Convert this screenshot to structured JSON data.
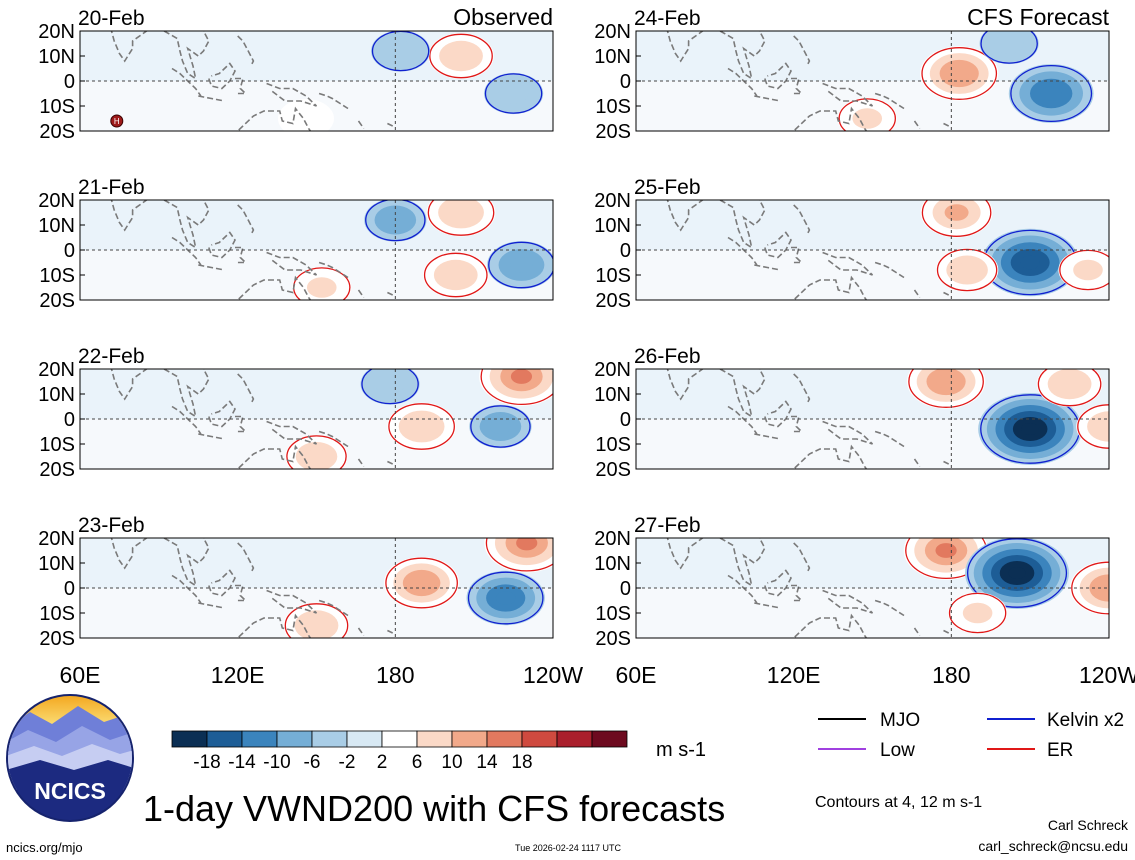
{
  "left_column_title": "Observed",
  "right_column_title": "CFS Forecast",
  "panels_left": [
    "20-Feb",
    "21-Feb",
    "22-Feb",
    "23-Feb"
  ],
  "panels_right": [
    "24-Feb",
    "25-Feb",
    "26-Feb",
    "27-Feb"
  ],
  "lat_labels": [
    "20N",
    "10N",
    "0",
    "10S",
    "20S"
  ],
  "lon_labels_left": [
    "60E",
    "120E",
    "180",
    "120W"
  ],
  "lon_labels_right": [
    "60E",
    "120E",
    "180",
    "120W"
  ],
  "high_marker": "H",
  "colorbar": {
    "ticks": [
      "-18",
      "-14",
      "-10",
      "-6",
      "-2",
      "2",
      "6",
      "10",
      "14",
      "18"
    ],
    "colors": [
      "#0b2f54",
      "#1d5d96",
      "#3b84bd",
      "#75aed6",
      "#a9cde6",
      "#d8e9f4",
      "#ffffff",
      "#fbd9c7",
      "#f2a98a",
      "#e2795f",
      "#cf4a3f",
      "#aa1f2c",
      "#6d0a1f"
    ],
    "units": "m s-1"
  },
  "legend": {
    "items": [
      {
        "label": "MJO",
        "color": "#000000"
      },
      {
        "label": "Kelvin x2",
        "color": "#1020d0"
      },
      {
        "label": "Low",
        "color": "#a040e0"
      },
      {
        "label": "ER",
        "color": "#e01818"
      }
    ],
    "contours_note": "Contours at 4, 12 m s-1"
  },
  "logo_text": "NCICS",
  "title": "1-day VWND200 with CFS forecasts",
  "footer": {
    "left": "ncics.org/mjo",
    "timestamp": "Tue 2026-02-24 1117 UTC",
    "author": "Carl Schreck",
    "email": "carl_schreck@ncsu.edu"
  },
  "chart_data": {
    "type": "heatmap",
    "variable": "200 hPa meridional wind (VWND200)",
    "units": "m s-1",
    "x_range": [
      60,
      240
    ],
    "x_ticks": [
      "60E",
      "120E",
      "180",
      "120W"
    ],
    "y_range": [
      -20,
      20
    ],
    "y_ticks": [
      "20N",
      "10N",
      "0",
      "10S",
      "20S"
    ],
    "color_levels": [
      -18,
      -14,
      -10,
      -6,
      -2,
      2,
      6,
      10,
      14,
      18
    ],
    "contour_levels": [
      4,
      12
    ],
    "observed_dates": [
      "20-Feb",
      "21-Feb",
      "22-Feb",
      "23-Feb"
    ],
    "forecast_dates": [
      "24-Feb",
      "25-Feb",
      "26-Feb",
      "27-Feb"
    ],
    "vertical_line_lon": 180,
    "features": [
      {
        "panel": "20-Feb",
        "lon": 205,
        "lat": 10,
        "value": 8
      },
      {
        "panel": "20-Feb",
        "lon": 225,
        "lat": -5,
        "value": -6
      },
      {
        "panel": "20-Feb",
        "lon": 182,
        "lat": 12,
        "value": -6
      },
      {
        "panel": "20-Feb",
        "lon": 146,
        "lat": -15,
        "value": 5
      },
      {
        "panel": "21-Feb",
        "lon": 205,
        "lat": 15,
        "value": 9
      },
      {
        "panel": "21-Feb",
        "lon": 203,
        "lat": -10,
        "value": 8
      },
      {
        "panel": "21-Feb",
        "lon": 180,
        "lat": 12,
        "value": -7
      },
      {
        "panel": "21-Feb",
        "lon": 228,
        "lat": -6,
        "value": -9
      },
      {
        "panel": "21-Feb",
        "lon": 152,
        "lat": -15,
        "value": 6
      },
      {
        "panel": "22-Feb",
        "lon": 228,
        "lat": 17,
        "value": 14
      },
      {
        "panel": "22-Feb",
        "lon": 190,
        "lat": -3,
        "value": 9
      },
      {
        "panel": "22-Feb",
        "lon": 220,
        "lat": -3,
        "value": -7
      },
      {
        "panel": "22-Feb",
        "lon": 178,
        "lat": 14,
        "value": -6
      },
      {
        "panel": "22-Feb",
        "lon": 150,
        "lat": -15,
        "value": 7
      },
      {
        "panel": "23-Feb",
        "lon": 190,
        "lat": 2,
        "value": 11
      },
      {
        "panel": "23-Feb",
        "lon": 222,
        "lat": -4,
        "value": -12
      },
      {
        "panel": "23-Feb",
        "lon": 230,
        "lat": 18,
        "value": 14
      },
      {
        "panel": "23-Feb",
        "lon": 150,
        "lat": -15,
        "value": 8
      },
      {
        "panel": "24-Feb",
        "lon": 183,
        "lat": 3,
        "value": 12
      },
      {
        "panel": "24-Feb",
        "lon": 218,
        "lat": -5,
        "value": -14
      },
      {
        "panel": "24-Feb",
        "lon": 202,
        "lat": 15,
        "value": -6
      },
      {
        "panel": "24-Feb",
        "lon": 148,
        "lat": -15,
        "value": 6
      },
      {
        "panel": "25-Feb",
        "lon": 182,
        "lat": 15,
        "value": 10
      },
      {
        "panel": "25-Feb",
        "lon": 210,
        "lat": -5,
        "value": -18
      },
      {
        "panel": "25-Feb",
        "lon": 186,
        "lat": -8,
        "value": 7
      },
      {
        "panel": "25-Feb",
        "lon": 232,
        "lat": -8,
        "value": 6
      },
      {
        "panel": "26-Feb",
        "lon": 178,
        "lat": 15,
        "value": 12
      },
      {
        "panel": "26-Feb",
        "lon": 210,
        "lat": -4,
        "value": -20
      },
      {
        "panel": "26-Feb",
        "lon": 225,
        "lat": 14,
        "value": 8
      },
      {
        "panel": "26-Feb",
        "lon": 240,
        "lat": -3,
        "value": 8
      },
      {
        "panel": "27-Feb",
        "lon": 178,
        "lat": 15,
        "value": 14
      },
      {
        "panel": "27-Feb",
        "lon": 205,
        "lat": 6,
        "value": -20
      },
      {
        "panel": "27-Feb",
        "lon": 240,
        "lat": 0,
        "value": 12
      },
      {
        "panel": "27-Feb",
        "lon": 190,
        "lat": -10,
        "value": 6
      }
    ]
  }
}
